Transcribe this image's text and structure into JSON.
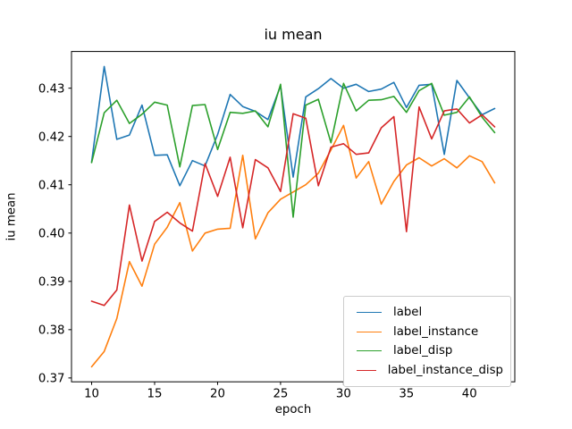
{
  "figure": {
    "title": "iu mean",
    "xlabel": "epoch",
    "ylabel": "iu mean"
  },
  "chart_data": {
    "type": "line",
    "title": "iu mean",
    "xlabel": "epoch",
    "ylabel": "iu mean",
    "grid": false,
    "legend_position": "lower right",
    "xlim": [
      8.4,
      43.6
    ],
    "ylim": [
      0.3692,
      0.4376
    ],
    "xticks": [
      10,
      15,
      20,
      25,
      30,
      35,
      40
    ],
    "yticks": [
      0.37,
      0.38,
      0.39,
      0.4,
      0.41,
      0.42,
      0.43
    ],
    "x": [
      10,
      11,
      12,
      13,
      14,
      15,
      16,
      17,
      18,
      19,
      20,
      21,
      22,
      23,
      24,
      25,
      26,
      27,
      28,
      29,
      30,
      31,
      32,
      33,
      34,
      35,
      36,
      37,
      38,
      39,
      40,
      41,
      42
    ],
    "series": [
      {
        "name": "label",
        "color": "#1f77b4",
        "values": [
          0.4147,
          0.4345,
          0.4194,
          0.4203,
          0.4265,
          0.4161,
          0.4162,
          0.4098,
          0.415,
          0.4139,
          0.4204,
          0.4287,
          0.4262,
          0.4252,
          0.4235,
          0.4305,
          0.4116,
          0.4282,
          0.4299,
          0.432,
          0.43,
          0.4308,
          0.4293,
          0.4298,
          0.4312,
          0.426,
          0.4306,
          0.4308,
          0.4163,
          0.4316,
          0.428,
          0.4245,
          0.4258
        ]
      },
      {
        "name": "label_instance",
        "color": "#ff7f0e",
        "values": [
          0.3723,
          0.3755,
          0.3823,
          0.3941,
          0.389,
          0.3977,
          0.4012,
          0.4063,
          0.3963,
          0.4,
          0.4008,
          0.401,
          0.4161,
          0.3988,
          0.4042,
          0.407,
          0.4085,
          0.41,
          0.4124,
          0.4172,
          0.4223,
          0.4114,
          0.4148,
          0.406,
          0.4107,
          0.4141,
          0.4156,
          0.4139,
          0.4154,
          0.4135,
          0.416,
          0.4148,
          0.4104
        ]
      },
      {
        "name": "label_disp",
        "color": "#2ca02c",
        "values": [
          0.4146,
          0.4249,
          0.4275,
          0.4227,
          0.4246,
          0.4271,
          0.4265,
          0.4137,
          0.4264,
          0.4266,
          0.4173,
          0.425,
          0.4248,
          0.4253,
          0.422,
          0.4308,
          0.4033,
          0.4265,
          0.4277,
          0.4187,
          0.431,
          0.4253,
          0.4275,
          0.4276,
          0.4283,
          0.425,
          0.4295,
          0.431,
          0.4244,
          0.425,
          0.4282,
          0.424,
          0.4208
        ]
      },
      {
        "name": "label_instance_disp",
        "color": "#d62728",
        "values": [
          0.3859,
          0.385,
          0.3882,
          0.4058,
          0.3942,
          0.4024,
          0.4043,
          0.4021,
          0.4004,
          0.4144,
          0.4076,
          0.4157,
          0.4011,
          0.4152,
          0.4135,
          0.4086,
          0.4247,
          0.4238,
          0.4098,
          0.4178,
          0.4185,
          0.4163,
          0.4166,
          0.4218,
          0.4241,
          0.4003,
          0.4261,
          0.4195,
          0.4253,
          0.4257,
          0.4228,
          0.4245,
          0.422
        ]
      }
    ]
  }
}
